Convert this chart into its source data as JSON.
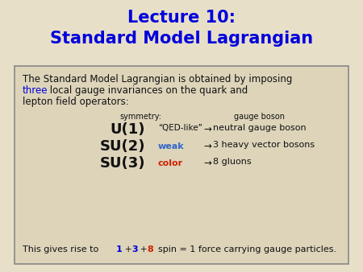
{
  "bg_color": "#e8dfc8",
  "title_line1": "Lecture 10:",
  "title_line2": "Standard Model Lagrangian",
  "title_color": "#0000dd",
  "box_bg": "#ddd4ba",
  "box_edge": "#888888",
  "intro_text1": "The Standard Model Lagrangian is obtained by imposing",
  "intro_text2_blue": "three",
  "intro_text2_black": " local gauge invariances on the quark and",
  "intro_text3": "lepton field operators:",
  "sym_label": "symmetry:",
  "gauge_label": "gauge boson",
  "u1_sym": "U(1)",
  "u1_desc": "“QED-like”",
  "u1_arrow": "→",
  "u1_boson": "neutral gauge boson",
  "su2_sym": "SU(2)",
  "su2_desc": "weak",
  "su2_arrow": "→",
  "su2_boson": "3 heavy vector bosons",
  "su3_sym": "SU(3)",
  "su3_desc": "color",
  "su3_arrow": "→",
  "su3_boson": "8 gluons",
  "footer_pre": "This gives rise to  ",
  "footer_1": "1",
  "footer_p1": " + ",
  "footer_3": "3",
  "footer_p2": " + ",
  "footer_8": "8",
  "footer_post": "  spin = 1 force carrying gauge particles.",
  "black": "#111111",
  "blue": "#0000dd",
  "red": "#cc2200",
  "weak_color": "#3366cc",
  "color_color": "#cc2200"
}
